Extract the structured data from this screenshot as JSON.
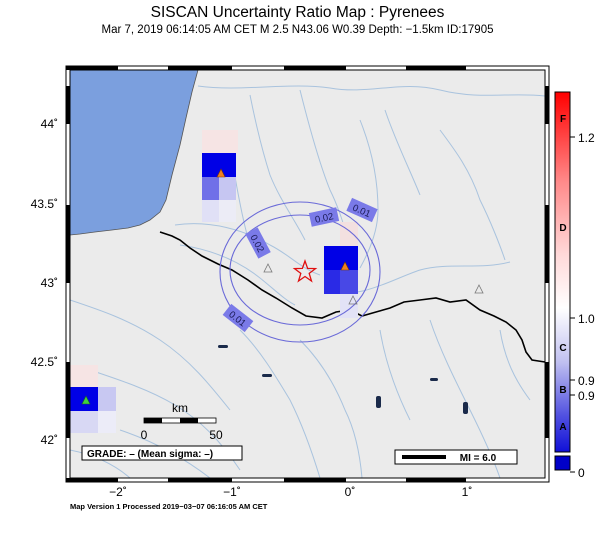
{
  "title": "SISCAN Uncertainty Ratio Map : Pyrenees",
  "subtitle": "Mar  7, 2019 06:14:05 AM CET   M 2.5   N43.06 W0.39   Depth: −1.5km   ID:17905",
  "footer": "Map Version 1 Processed 2019−03−07 06:16:05 AM CET",
  "axes": {
    "lat_ticks": [
      "44˚",
      "43.5˚",
      "43˚",
      "42.5˚",
      "42˚"
    ],
    "lon_ticks": [
      "−2˚",
      "−1˚",
      "0˚",
      "1˚"
    ]
  },
  "contours": [
    "0.02",
    "0.01",
    "0.02",
    "0.01"
  ],
  "grade_box": "GRADE: – (Mean sigma: –)",
  "scale_bar": {
    "unit": "km",
    "min": "0",
    "max": "50"
  },
  "mi_box": "MI = 6.0",
  "colorbar": {
    "grades": [
      "F",
      "D",
      "C",
      "B",
      "A"
    ],
    "values": [
      "1.2",
      "1.0",
      "0.9",
      "0.9",
      "0"
    ]
  },
  "legend_symbols": {
    "epicenter": "red-star",
    "stations": "triangles"
  },
  "colors": {
    "ocean": "#7b9fde",
    "land": "#ebebeb",
    "rivers": "#a9c3de",
    "border": "#000000",
    "contour": "#6a6ad8",
    "contour_label_bg": "#7a7ae8",
    "high": "#0000e6",
    "low": "#b0b0f0",
    "epicenter": "#e01010"
  }
}
